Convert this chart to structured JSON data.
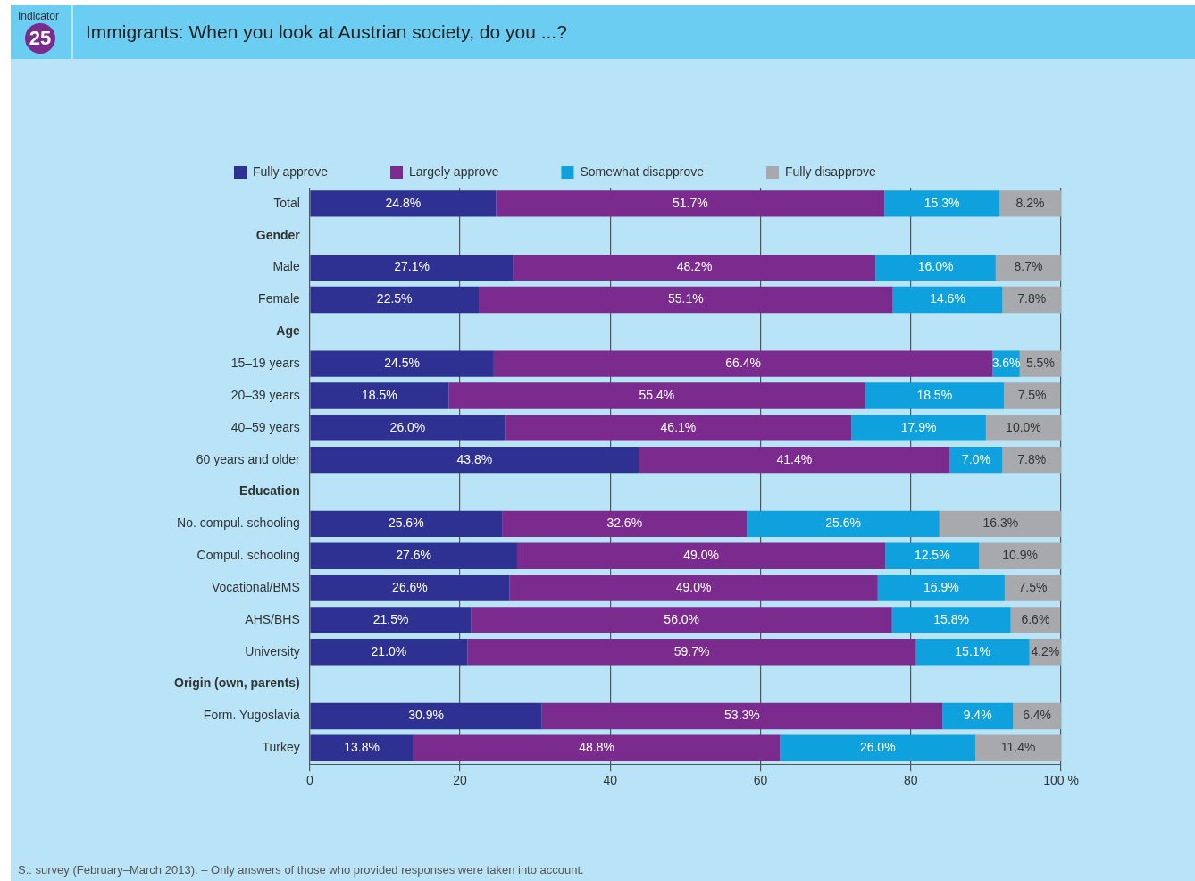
{
  "chart_data": {
    "type": "bar",
    "orientation": "horizontal",
    "stacked": true,
    "title": "Immigrants: When you look at Austrian society, do you ...?",
    "categories": [
      "Total",
      "Gender",
      "Male",
      "Female",
      "Age",
      "15–19 years",
      "20–39 years",
      "40–59 years",
      "60 years and older",
      "Education",
      "No. compul. schooling",
      "Compul. schooling",
      "Vocational/BMS",
      "AHS/BHS",
      "University",
      "Origin (own, parents)",
      "Form. Yugoslavia",
      "Turkey"
    ],
    "series": [
      {
        "name": "Fully approve",
        "color": "#2e3192",
        "values": [
          24.8,
          null,
          27.1,
          22.5,
          null,
          24.5,
          18.5,
          26.0,
          43.8,
          null,
          25.6,
          27.6,
          26.6,
          21.5,
          21.0,
          null,
          30.9,
          13.8
        ],
        "value_labels": [
          "24.8%",
          null,
          "27.1%",
          "22.5%",
          null,
          "24.5%",
          "18.5%",
          "26.0%",
          "43.8%",
          null,
          "25.6%",
          "27.6%",
          "26.6%",
          "21.5%",
          "21.0%",
          null,
          "30.9%",
          "13.8%"
        ]
      },
      {
        "name": "Largely approve",
        "color": "#7b2a8e",
        "values": [
          51.7,
          null,
          48.2,
          55.1,
          null,
          66.4,
          55.4,
          46.1,
          41.4,
          null,
          32.6,
          49.0,
          49.0,
          56.0,
          59.7,
          null,
          53.3,
          48.8
        ],
        "value_labels": [
          "51.7%",
          null,
          "48.2%",
          "55.1%",
          null,
          "66.4%",
          "55.4%",
          "46.1%",
          "41.4%",
          null,
          "32.6%",
          "49.0%",
          "49.0%",
          "56.0%",
          "59.7%",
          null,
          "53.3%",
          "48.8%"
        ]
      },
      {
        "name": "Somewhat disapprove",
        "color": "#0ea1dd",
        "values": [
          15.3,
          null,
          16.0,
          14.6,
          null,
          3.6,
          18.5,
          17.9,
          7.0,
          null,
          25.6,
          12.5,
          16.9,
          15.8,
          15.1,
          null,
          9.4,
          26.0
        ],
        "value_labels": [
          "15.3%",
          null,
          "16.0%",
          "14.6%",
          null,
          "3.6%",
          "18.5%",
          "17.9%",
          "7.0%",
          null,
          "25.6%",
          "12.5%",
          "16.9%",
          "15.8%",
          "15.1%",
          null,
          "9.4%",
          "26.0%"
        ]
      },
      {
        "name": "Fully disapprove",
        "color": "#a7a9ac",
        "values": [
          8.2,
          null,
          8.7,
          7.8,
          null,
          5.5,
          7.5,
          10.0,
          7.8,
          null,
          16.3,
          10.9,
          7.5,
          6.6,
          4.2,
          null,
          6.4,
          11.4
        ],
        "value_labels": [
          "8.2%",
          null,
          "8.7%",
          "7.8%",
          null,
          "5.5%",
          "7.5%",
          "10.0%",
          "7.8%",
          null,
          "16.3%",
          "10.9%",
          "7.5%",
          "6.6%",
          "4.2%",
          null,
          "6.4%",
          "11.4%"
        ]
      }
    ],
    "xlim": [
      0,
      100
    ],
    "xticks": [
      0,
      20,
      40,
      60,
      80,
      {
        "value": 100,
        "label": "100 %"
      }
    ],
    "grid": "x",
    "legend": "top",
    "annotations": [
      "Indicator",
      "25",
      "S.: survey (February–March 2013). – Only answers of those who provided responses were taken into account."
    ]
  }
}
